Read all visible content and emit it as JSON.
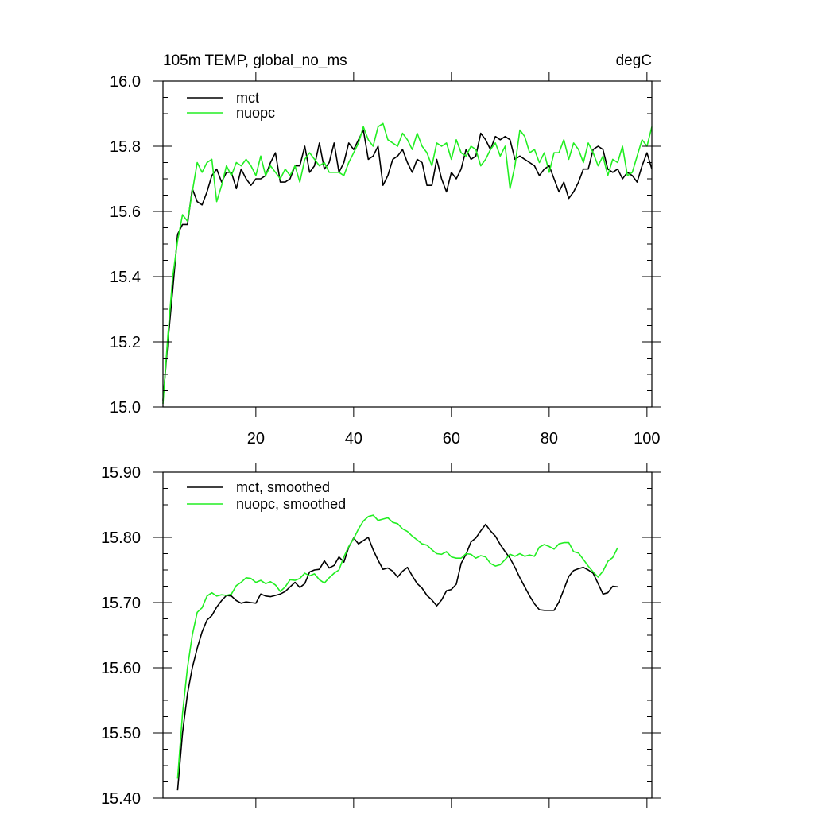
{
  "chart_data": [
    {
      "type": "line",
      "title_left": "105m TEMP, global_no_ms",
      "title_right": "degC",
      "xlim": [
        1,
        101
      ],
      "ylim": [
        15.0,
        16.0
      ],
      "x_ticks": [
        20,
        40,
        60,
        80,
        100
      ],
      "x_tick_labels": [
        "20",
        "40",
        "60",
        "80",
        "100"
      ],
      "y_ticks": [
        15.0,
        15.2,
        15.4,
        15.6,
        15.8,
        16.0
      ],
      "y_tick_labels": [
        "15.0",
        "15.2",
        "15.4",
        "15.6",
        "15.8",
        "16.0"
      ],
      "legend_position": "top-left",
      "series": [
        {
          "name": "mct",
          "color": "#000000",
          "x_start": 1,
          "values": [
            15.02,
            15.2,
            15.36,
            15.53,
            15.56,
            15.56,
            15.67,
            15.63,
            15.62,
            15.66,
            15.71,
            15.73,
            15.69,
            15.72,
            15.72,
            15.67,
            15.73,
            15.7,
            15.68,
            15.7,
            15.7,
            15.71,
            15.75,
            15.78,
            15.69,
            15.69,
            15.7,
            15.74,
            15.74,
            15.8,
            15.72,
            15.74,
            15.81,
            15.73,
            15.75,
            15.81,
            15.72,
            15.75,
            15.81,
            15.79,
            15.82,
            15.85,
            15.76,
            15.77,
            15.8,
            15.68,
            15.71,
            15.76,
            15.77,
            15.79,
            15.75,
            15.72,
            15.76,
            15.75,
            15.68,
            15.68,
            15.76,
            15.7,
            15.66,
            15.72,
            15.7,
            15.73,
            15.79,
            15.76,
            15.77,
            15.84,
            15.82,
            15.79,
            15.83,
            15.82,
            15.83,
            15.82,
            15.76,
            15.77,
            15.76,
            15.75,
            15.74,
            15.71,
            15.73,
            15.74,
            15.7,
            15.66,
            15.69,
            15.64,
            15.66,
            15.69,
            15.73,
            15.73,
            15.79,
            15.8,
            15.79,
            15.73,
            15.72,
            15.73,
            15.7,
            15.72,
            15.71,
            15.69,
            15.74,
            15.78,
            15.73
          ]
        },
        {
          "name": "nuopc",
          "color": "#22ee22",
          "x_start": 1,
          "values": [
            15.01,
            15.22,
            15.4,
            15.51,
            15.59,
            15.57,
            15.66,
            15.75,
            15.72,
            15.75,
            15.76,
            15.63,
            15.68,
            15.74,
            15.71,
            15.75,
            15.74,
            15.76,
            15.74,
            15.71,
            15.77,
            15.71,
            15.74,
            15.72,
            15.7,
            15.73,
            15.71,
            15.74,
            15.69,
            15.76,
            15.78,
            15.76,
            15.74,
            15.75,
            15.72,
            15.72,
            15.72,
            15.71,
            15.75,
            15.78,
            15.81,
            15.86,
            15.82,
            15.8,
            15.86,
            15.87,
            15.82,
            15.81,
            15.8,
            15.84,
            15.82,
            15.79,
            15.84,
            15.8,
            15.78,
            15.74,
            15.81,
            15.8,
            15.81,
            15.76,
            15.82,
            15.78,
            15.77,
            15.8,
            15.79,
            15.74,
            15.76,
            15.79,
            15.81,
            15.77,
            15.8,
            15.67,
            15.74,
            15.85,
            15.83,
            15.78,
            15.79,
            15.75,
            15.78,
            15.72,
            15.78,
            15.78,
            15.82,
            15.76,
            15.81,
            15.79,
            15.75,
            15.81,
            15.78,
            15.74,
            15.77,
            15.71,
            15.76,
            15.75,
            15.8,
            15.71,
            15.72,
            15.77,
            15.82,
            15.8,
            15.86
          ]
        }
      ]
    },
    {
      "type": "line",
      "xlim": [
        1,
        101
      ],
      "ylim": [
        15.4,
        15.9
      ],
      "x_ticks": [
        20,
        40,
        60,
        80,
        100
      ],
      "y_ticks": [
        15.4,
        15.5,
        15.6,
        15.7,
        15.8,
        15.9
      ],
      "y_tick_labels": [
        "15.40",
        "15.50",
        "15.60",
        "15.70",
        "15.80",
        "15.90"
      ],
      "legend_position": "top-left",
      "series": [
        {
          "name": "mct, smoothed",
          "color": "#000000",
          "x_start": 4,
          "values": [
            15.412,
            15.5,
            15.56,
            15.6,
            15.63,
            15.655,
            15.673,
            15.68,
            15.693,
            15.703,
            15.711,
            15.71,
            15.703,
            15.699,
            15.701,
            15.7,
            15.699,
            15.713,
            15.71,
            15.709,
            15.711,
            15.713,
            15.717,
            15.724,
            15.731,
            15.723,
            15.729,
            15.747,
            15.75,
            15.751,
            15.764,
            15.753,
            15.757,
            15.77,
            15.762,
            15.785,
            15.799,
            15.79,
            15.795,
            15.8,
            15.781,
            15.765,
            15.751,
            15.753,
            15.748,
            15.739,
            15.748,
            15.754,
            15.741,
            15.729,
            15.722,
            15.711,
            15.704,
            15.695,
            15.704,
            15.718,
            15.72,
            15.728,
            15.76,
            15.774,
            15.793,
            15.799,
            15.81,
            15.82,
            15.81,
            15.802,
            15.789,
            15.778,
            15.768,
            15.754,
            15.738,
            15.724,
            15.71,
            15.698,
            15.689,
            15.688,
            15.688,
            15.688,
            15.701,
            15.72,
            15.74,
            15.749,
            15.752,
            15.754,
            15.75,
            15.745,
            15.729,
            15.713,
            15.715,
            15.725,
            15.724
          ]
        },
        {
          "name": "nuopc, smoothed",
          "color": "#22ee22",
          "x_start": 4,
          "values": [
            15.43,
            15.53,
            15.6,
            15.65,
            15.685,
            15.692,
            15.71,
            15.715,
            15.71,
            15.712,
            15.711,
            15.713,
            15.726,
            15.731,
            15.738,
            15.737,
            15.731,
            15.734,
            15.729,
            15.732,
            15.727,
            15.717,
            15.724,
            15.735,
            15.734,
            15.737,
            15.745,
            15.741,
            15.744,
            15.735,
            15.73,
            15.738,
            15.745,
            15.75,
            15.77,
            15.786,
            15.798,
            15.813,
            15.825,
            15.832,
            15.834,
            15.826,
            15.828,
            15.83,
            15.823,
            15.821,
            15.813,
            15.809,
            15.802,
            15.796,
            15.79,
            15.788,
            15.781,
            15.775,
            15.774,
            15.778,
            15.77,
            15.768,
            15.768,
            15.775,
            15.774,
            15.768,
            15.772,
            15.77,
            15.76,
            15.756,
            15.758,
            15.766,
            15.774,
            15.771,
            15.775,
            15.771,
            15.773,
            15.771,
            15.785,
            15.789,
            15.786,
            15.782,
            15.79,
            15.792,
            15.792,
            15.778,
            15.776,
            15.766,
            15.756,
            15.747,
            15.739,
            15.748,
            15.763,
            15.769,
            15.784
          ]
        }
      ]
    }
  ]
}
